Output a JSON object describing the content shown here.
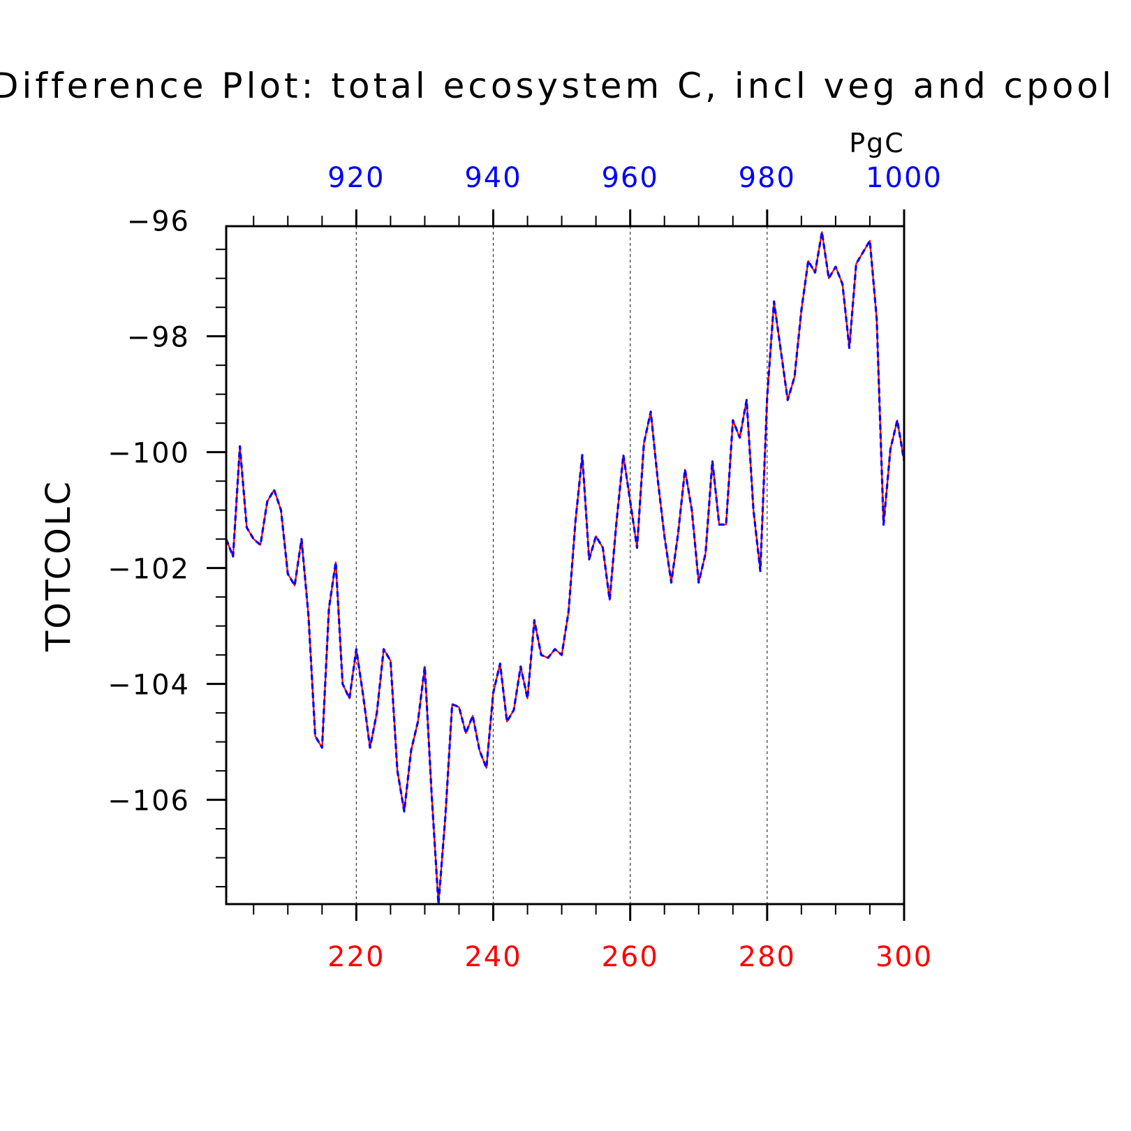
{
  "chart_data": {
    "type": "line",
    "title": "Difference Plot: total ecosystem C, incl veg and cpool",
    "units": "PgC",
    "ylabel": "TOTCOLC",
    "ylim": [
      -107.8,
      -96.1
    ],
    "yticks_major": [
      -96,
      -98,
      -100,
      -102,
      -104,
      -106
    ],
    "y_tick_labels": [
      "−96",
      "−98",
      "−100",
      "−102",
      "−104",
      "−106"
    ],
    "x_bottom": {
      "range": [
        201,
        300
      ],
      "tick_values": [
        220,
        240,
        260,
        280,
        300
      ],
      "tick_labels": [
        "220",
        "240",
        "260",
        "280",
        "300"
      ],
      "color": "#ff0000"
    },
    "x_top": {
      "range": [
        901,
        1000
      ],
      "tick_values": [
        920,
        940,
        960,
        980,
        1000
      ],
      "tick_labels": [
        "920",
        "940",
        "960",
        "980",
        "1000"
      ],
      "color": "#0000ff"
    },
    "grid": "dashed vertical at major x ticks",
    "series": [
      {
        "color": "#ff0000",
        "style": "solid",
        "x": [
          201,
          202,
          203,
          204,
          205,
          206,
          207,
          208,
          209,
          210,
          211,
          212,
          213,
          214,
          215,
          216,
          217,
          218,
          219,
          220,
          221,
          222,
          223,
          224,
          225,
          226,
          227,
          228,
          229,
          230,
          231,
          232,
          233,
          234,
          235,
          236,
          237,
          238,
          239,
          240,
          241,
          242,
          243,
          244,
          245,
          246,
          247,
          248,
          249,
          250,
          251,
          252,
          253,
          254,
          255,
          256,
          257,
          258,
          259,
          260,
          261,
          262,
          263,
          264,
          265,
          266,
          267,
          268,
          269,
          270,
          271,
          272,
          273,
          274,
          275,
          276,
          277,
          278,
          279,
          280,
          281,
          282,
          283,
          284,
          285,
          286,
          287,
          288,
          289,
          290,
          291,
          292,
          293,
          294,
          295,
          296,
          297,
          298,
          299,
          300
        ],
        "values": [
          -101.5,
          -101.8,
          -99.9,
          -101.3,
          -101.5,
          -101.6,
          -100.85,
          -100.65,
          -101.0,
          -102.1,
          -102.3,
          -101.5,
          -102.8,
          -104.9,
          -105.1,
          -102.7,
          -101.9,
          -104.0,
          -104.25,
          -103.4,
          -104.2,
          -105.1,
          -104.5,
          -103.4,
          -103.6,
          -105.5,
          -106.2,
          -105.15,
          -104.65,
          -103.7,
          -105.9,
          -107.8,
          -106.3,
          -104.35,
          -104.4,
          -104.85,
          -104.55,
          -105.15,
          -105.45,
          -104.15,
          -103.65,
          -104.65,
          -104.45,
          -103.7,
          -104.25,
          -102.9,
          -103.5,
          -103.55,
          -103.4,
          -103.5,
          -102.75,
          -101.2,
          -100.05,
          -101.85,
          -101.45,
          -101.65,
          -102.55,
          -101.2,
          -100.05,
          -100.85,
          -101.65,
          -99.85,
          -99.3,
          -100.45,
          -101.45,
          -102.25,
          -101.4,
          -100.3,
          -101.0,
          -102.25,
          -101.75,
          -100.15,
          -101.25,
          -101.25,
          -99.45,
          -99.75,
          -99.1,
          -101.0,
          -102.05,
          -99.05,
          -97.4,
          -98.25,
          -99.1,
          -98.7,
          -97.55,
          -96.7,
          -96.9,
          -96.2,
          -97.0,
          -96.8,
          -97.1,
          -98.2,
          -96.75,
          -96.55,
          -96.35,
          -97.7,
          -101.25,
          -99.95,
          -99.45,
          -100.15
        ]
      },
      {
        "color": "#0000ff",
        "style": "dashed",
        "x": [
          201,
          202,
          203,
          204,
          205,
          206,
          207,
          208,
          209,
          210,
          211,
          212,
          213,
          214,
          215,
          216,
          217,
          218,
          219,
          220,
          221,
          222,
          223,
          224,
          225,
          226,
          227,
          228,
          229,
          230,
          231,
          232,
          233,
          234,
          235,
          236,
          237,
          238,
          239,
          240,
          241,
          242,
          243,
          244,
          245,
          246,
          247,
          248,
          249,
          250,
          251,
          252,
          253,
          254,
          255,
          256,
          257,
          258,
          259,
          260,
          261,
          262,
          263,
          264,
          265,
          266,
          267,
          268,
          269,
          270,
          271,
          272,
          273,
          274,
          275,
          276,
          277,
          278,
          279,
          280,
          281,
          282,
          283,
          284,
          285,
          286,
          287,
          288,
          289,
          290,
          291,
          292,
          293,
          294,
          295,
          296,
          297,
          298,
          299,
          300
        ],
        "values": [
          -101.5,
          -101.8,
          -99.9,
          -101.3,
          -101.5,
          -101.6,
          -100.85,
          -100.65,
          -101.0,
          -102.1,
          -102.3,
          -101.5,
          -102.8,
          -104.9,
          -105.1,
          -102.7,
          -101.9,
          -104.0,
          -104.25,
          -103.4,
          -104.2,
          -105.1,
          -104.5,
          -103.4,
          -103.6,
          -105.5,
          -106.2,
          -105.15,
          -104.65,
          -103.7,
          -105.9,
          -107.8,
          -106.3,
          -104.35,
          -104.4,
          -104.85,
          -104.55,
          -105.15,
          -105.45,
          -104.15,
          -103.65,
          -104.65,
          -104.45,
          -103.7,
          -104.25,
          -102.9,
          -103.5,
          -103.55,
          -103.4,
          -103.5,
          -102.75,
          -101.2,
          -100.05,
          -101.85,
          -101.45,
          -101.65,
          -102.55,
          -101.2,
          -100.05,
          -100.85,
          -101.65,
          -99.85,
          -99.3,
          -100.45,
          -101.45,
          -102.25,
          -101.4,
          -100.3,
          -101.0,
          -102.25,
          -101.75,
          -100.15,
          -101.25,
          -101.25,
          -99.45,
          -99.75,
          -99.1,
          -101.0,
          -102.05,
          -99.05,
          -97.4,
          -98.25,
          -99.1,
          -98.7,
          -97.55,
          -96.7,
          -96.9,
          -96.2,
          -97.0,
          -96.8,
          -97.1,
          -98.2,
          -96.75,
          -96.55,
          -96.35,
          -97.7,
          -101.25,
          -99.95,
          -99.45,
          -100.15
        ]
      }
    ]
  }
}
